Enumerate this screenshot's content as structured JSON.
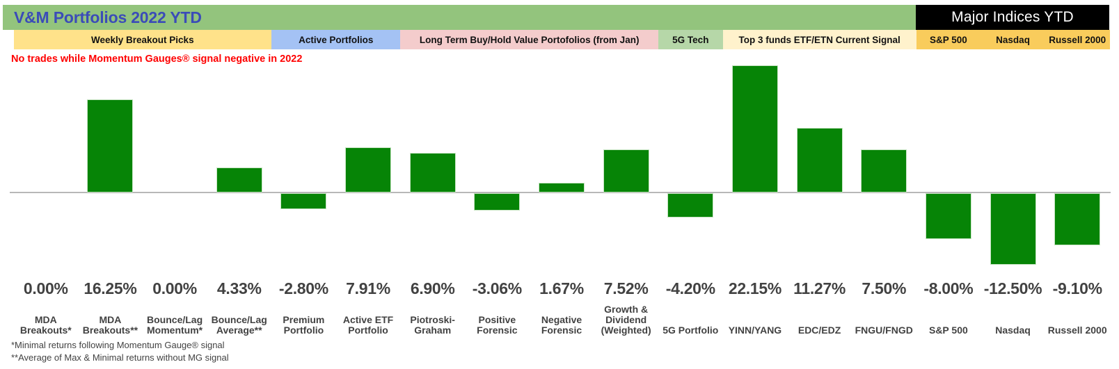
{
  "header": {
    "title": "V&M Portfolios 2022 YTD",
    "major_indices_title": "Major Indices YTD"
  },
  "warning": "No trades while Momentum Gauges® signal negative in 2022",
  "footnotes": [
    "*Minimal returns following Momentum Gauge® signal",
    "**Average of Max & Minimal returns without MG signal"
  ],
  "groups": [
    {
      "label": "Weekly Breakout Picks",
      "color": "#FFE28A",
      "from": 0,
      "to": 3
    },
    {
      "label": "Active Portfolios",
      "color": "#A4C2F4",
      "from": 4,
      "to": 5
    },
    {
      "label": "Long Term Buy/Hold Value Portofolios (from Jan)",
      "color": "#F4CCCC",
      "from": 6,
      "to": 9
    },
    {
      "label": "5G Tech",
      "color": "#B6D7A8",
      "from": 10,
      "to": 10
    },
    {
      "label": "Top 3 funds ETF/ETN Current Signal",
      "color": "#FFF2CC",
      "from": 11,
      "to": 13
    },
    {
      "label": "S&P 500",
      "color": "#F9CC5C",
      "from": 14,
      "to": 14
    },
    {
      "label": "Nasdaq",
      "color": "#F9CC5C",
      "from": 15,
      "to": 15
    },
    {
      "label": "Russell 2000",
      "color": "#F9CC5C",
      "from": 16,
      "to": 16
    }
  ],
  "chart_data": {
    "type": "bar",
    "title": "V&M Portfolios 2022 YTD",
    "categories": [
      "MDA Breakouts*",
      "MDA Breakouts**",
      "Bounce/Lag Momentum*",
      "Bounce/Lag Average**",
      "Premium Portfolio",
      "Active ETF Portfolio",
      "Piotroski-Graham",
      "Positive Forensic",
      "Negative Forensic",
      "Growth & Dividend (Weighted)",
      "5G Portfolio",
      "YINN/YANG",
      "EDC/EDZ",
      "FNGU/FNGD",
      "S&P 500",
      "Nasdaq",
      "Russell 2000"
    ],
    "category_lines": [
      [
        "MDA",
        "Breakouts*"
      ],
      [
        "MDA",
        "Breakouts**"
      ],
      [
        "Bounce/Lag",
        "Momentum*"
      ],
      [
        "Bounce/Lag",
        "Average**"
      ],
      [
        "Premium",
        "Portfolio"
      ],
      [
        "Active ETF",
        "Portfolio"
      ],
      [
        "Piotroski-",
        "Graham"
      ],
      [
        "Positive",
        "Forensic"
      ],
      [
        "Negative",
        "Forensic"
      ],
      [
        "Growth &",
        "Dividend",
        "(Weighted)"
      ],
      [
        "5G Portfolio"
      ],
      [
        "YINN/YANG"
      ],
      [
        "EDC/EDZ"
      ],
      [
        "FNGU/FNGD"
      ],
      [
        "S&P 500"
      ],
      [
        "Nasdaq"
      ],
      [
        "Russell 2000"
      ]
    ],
    "values": [
      0.0,
      16.25,
      0.0,
      4.33,
      -2.8,
      7.91,
      6.9,
      -3.06,
      1.67,
      7.52,
      -4.2,
      22.15,
      11.27,
      7.5,
      -8.0,
      -12.5,
      -9.1
    ],
    "value_labels": [
      "0.00%",
      "16.25%",
      "0.00%",
      "4.33%",
      "-2.80%",
      "7.91%",
      "6.90%",
      "-3.06%",
      "1.67%",
      "7.52%",
      "-4.20%",
      "22.15%",
      "11.27%",
      "7.50%",
      "-8.00%",
      "-12.50%",
      "-9.10%"
    ],
    "xlabel": "",
    "ylabel": "",
    "baseline": 0,
    "grid": false,
    "legend": false,
    "value_labels_position": "below",
    "bar_color": "#068406"
  },
  "colors": {
    "header_green": "#93C47D",
    "title_blue": "#3B4CB8",
    "indices_bg": "#000000",
    "indices_text": "#FFFFFF",
    "warning_red": "#FF0000",
    "bar_green": "#068406",
    "axis_gray": "#B7B7B7",
    "text_dark": "#424242"
  }
}
